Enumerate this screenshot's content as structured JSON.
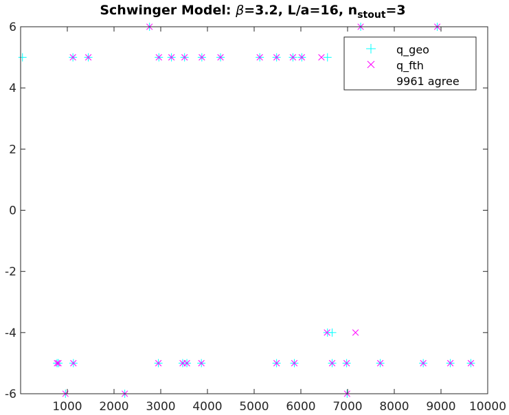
{
  "chart_data": {
    "type": "scatter",
    "title": {
      "prefix": "Schwinger Model: ",
      "beta_symbol": "β",
      "middle": "=3.2, L/a=16, n",
      "subscript": "stout",
      "suffix": "=3"
    },
    "xlabel": "",
    "ylabel": "",
    "xlim": [
      0,
      10000
    ],
    "ylim": [
      -6,
      6
    ],
    "xticks": [
      1000,
      2000,
      3000,
      4000,
      5000,
      6000,
      7000,
      8000,
      9000,
      10000
    ],
    "xtick_labels": [
      "1000",
      "2000",
      "3000",
      "4000",
      "5000",
      "6000",
      "7000",
      "8000",
      "9000",
      "10000"
    ],
    "yticks": [
      -6,
      -4,
      -2,
      0,
      2,
      4,
      6
    ],
    "ytick_labels": [
      "-6",
      "-4",
      "-2",
      "0",
      "2",
      "4",
      "6"
    ],
    "grid": false,
    "legend_position": "top-right",
    "legend_note": "9961 agree",
    "series": [
      {
        "name": "q_geo",
        "marker": "+",
        "color": "#00ffff",
        "points": [
          [
            40,
            5
          ],
          [
            1120,
            5
          ],
          [
            1450,
            5
          ],
          [
            2960,
            5
          ],
          [
            3230,
            5
          ],
          [
            3510,
            5
          ],
          [
            3880,
            5
          ],
          [
            4280,
            5
          ],
          [
            5120,
            5
          ],
          [
            5480,
            5
          ],
          [
            5830,
            5
          ],
          [
            6020,
            5
          ],
          [
            6570,
            5
          ],
          [
            2760,
            6
          ],
          [
            7280,
            6
          ],
          [
            8920,
            6
          ],
          [
            960,
            -6
          ],
          [
            2230,
            -6
          ],
          [
            6990,
            -6
          ],
          [
            780,
            -5
          ],
          [
            810,
            -5
          ],
          [
            1130,
            -5
          ],
          [
            2950,
            -5
          ],
          [
            3470,
            -5
          ],
          [
            3560,
            -5
          ],
          [
            3870,
            -5
          ],
          [
            5480,
            -5
          ],
          [
            5860,
            -5
          ],
          [
            6670,
            -5
          ],
          [
            6980,
            -5
          ],
          [
            7700,
            -5
          ],
          [
            8620,
            -5
          ],
          [
            9200,
            -5
          ],
          [
            9640,
            -5
          ],
          [
            6670,
            -4
          ],
          [
            6570,
            -4
          ]
        ]
      },
      {
        "name": "q_fth",
        "marker": "x",
        "color": "#ff00ff",
        "points": [
          [
            1120,
            5
          ],
          [
            1450,
            5
          ],
          [
            2960,
            5
          ],
          [
            3230,
            5
          ],
          [
            3510,
            5
          ],
          [
            3880,
            5
          ],
          [
            4280,
            5
          ],
          [
            5120,
            5
          ],
          [
            5480,
            5
          ],
          [
            5830,
            5
          ],
          [
            6020,
            5
          ],
          [
            6440,
            5
          ],
          [
            2760,
            6
          ],
          [
            7280,
            6
          ],
          [
            8920,
            6
          ],
          [
            960,
            -6
          ],
          [
            2230,
            -6
          ],
          [
            6990,
            -6
          ],
          [
            780,
            -5
          ],
          [
            810,
            -5
          ],
          [
            1130,
            -5
          ],
          [
            2950,
            -5
          ],
          [
            3470,
            -5
          ],
          [
            3560,
            -5
          ],
          [
            3870,
            -5
          ],
          [
            5480,
            -5
          ],
          [
            5860,
            -5
          ],
          [
            6670,
            -5
          ],
          [
            6980,
            -5
          ],
          [
            7700,
            -5
          ],
          [
            8620,
            -5
          ],
          [
            9200,
            -5
          ],
          [
            9640,
            -5
          ],
          [
            6560,
            -4
          ],
          [
            7170,
            -4
          ]
        ]
      }
    ]
  },
  "legend": {
    "entries": [
      {
        "label": "q_geo",
        "marker": "+",
        "color": "#00ffff"
      },
      {
        "label": "q_fth",
        "marker": "x",
        "color": "#ff00ff"
      }
    ],
    "note": "9961 agree"
  }
}
